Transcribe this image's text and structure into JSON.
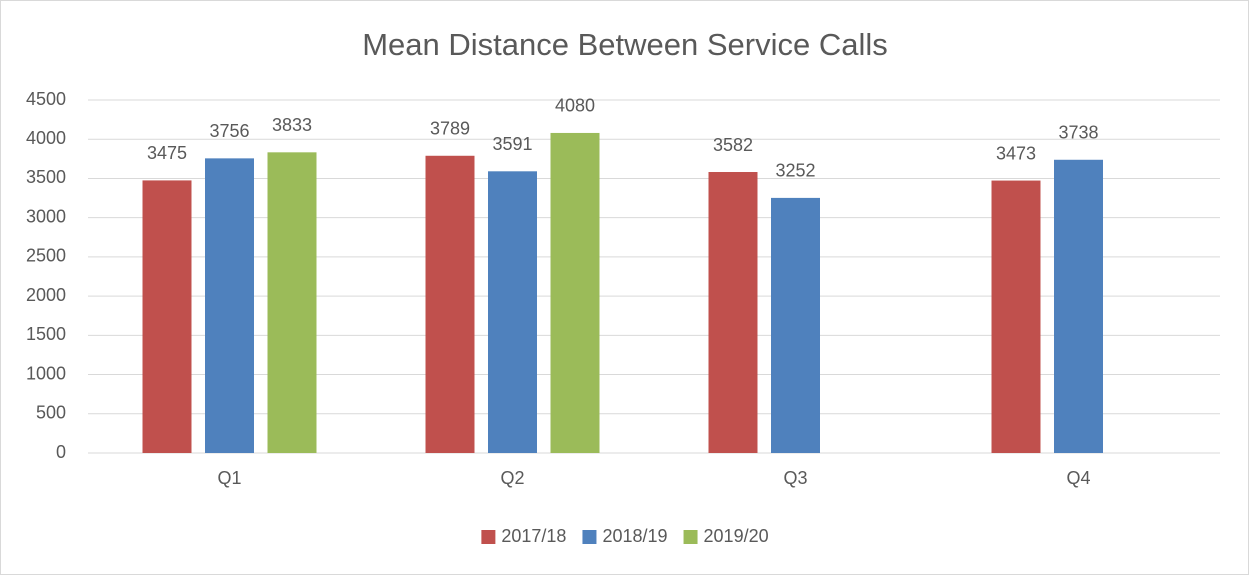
{
  "chart_data": {
    "type": "bar",
    "title": "Mean Distance Between Service Calls",
    "categories": [
      "Q1",
      "Q2",
      "Q3",
      "Q4"
    ],
    "series": [
      {
        "name": "2017/18",
        "color": "#c0504d",
        "values": [
          3475,
          3789,
          3582,
          3473
        ]
      },
      {
        "name": "2018/19",
        "color": "#4f81bd",
        "values": [
          3756,
          3591,
          3252,
          3738
        ]
      },
      {
        "name": "2019/20",
        "color": "#9bbb59",
        "values": [
          3833,
          4080,
          null,
          null
        ]
      }
    ],
    "ylim": [
      0,
      4500
    ],
    "yticks": [
      0,
      500,
      1000,
      1500,
      2000,
      2500,
      3000,
      3500,
      4000,
      4500
    ],
    "grid": true,
    "legend": "bottom"
  }
}
